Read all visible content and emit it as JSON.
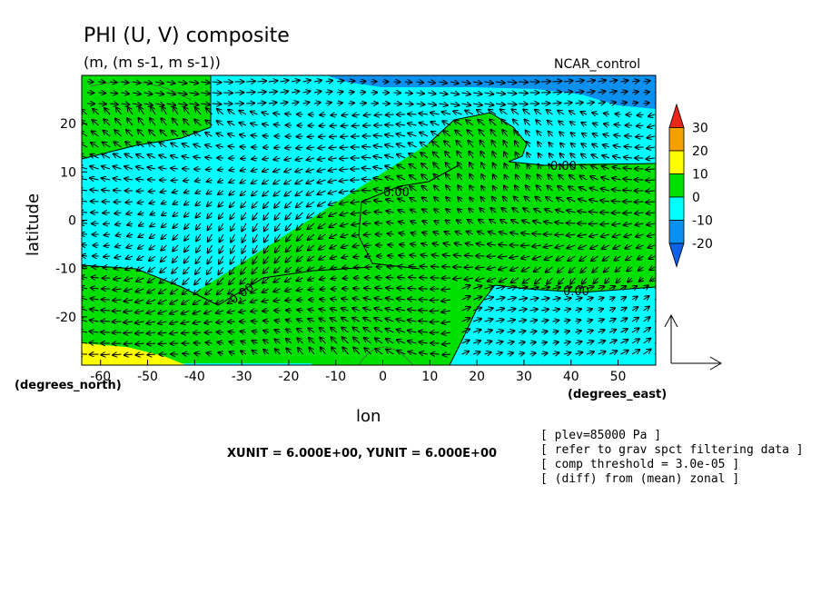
{
  "title": "PHI (U, V) composite",
  "subtitle": "(m, (m s-1, m s-1))",
  "dataset": "NCAR_control",
  "chart_data": {
    "type": "heatmap",
    "x": [
      -60,
      -50,
      -40,
      -30,
      -20,
      -10,
      0,
      10,
      20,
      30,
      40,
      50
    ],
    "y": [
      -20,
      -10,
      0,
      10,
      20
    ],
    "xlabel": "lon",
    "ylabel": "latitude",
    "x_unit": "(degrees_east)",
    "y_unit": "(degrees_north)",
    "xlim": [
      -64,
      58
    ],
    "ylim": [
      -30,
      30
    ],
    "colorbar": {
      "ticks": [
        30,
        20,
        10,
        0,
        -10,
        -20
      ],
      "colors": [
        "#e8261a",
        "#f5a000",
        "#ffff00",
        "#00e000",
        "#00ffff",
        "#0a90ee",
        "#1060e8"
      ]
    },
    "contour_labels": [
      "0.00",
      "0.00",
      "0.00",
      "0.00"
    ],
    "vector_unit_line": "XUNIT = 6.000E+00, YUNIT = 6.000E+00"
  },
  "info_lines": [
    "[ plev=85000 Pa ]",
    "[ refer to grav spct filtering data ]",
    "[ comp threshold = 3.0e-05 ]",
    "[ (diff) from (mean) zonal ]"
  ]
}
